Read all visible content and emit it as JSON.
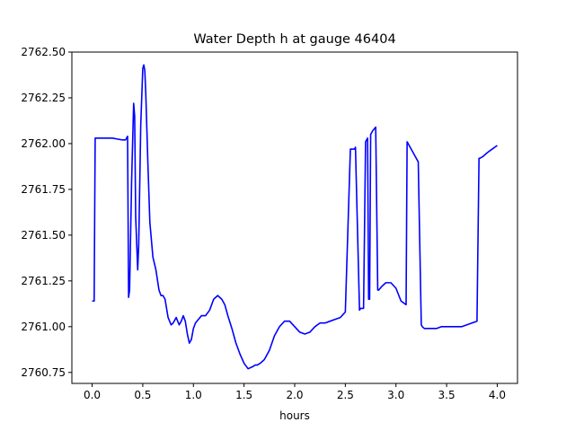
{
  "chart_data": {
    "type": "line",
    "title": "Water Depth h at gauge 46404",
    "xlabel": "hours",
    "ylabel": "",
    "xlim": [
      -0.2,
      4.2
    ],
    "ylim": [
      2760.69,
      2762.5
    ],
    "xticks": [
      0.0,
      0.5,
      1.0,
      1.5,
      2.0,
      2.5,
      3.0,
      3.5,
      4.0
    ],
    "xtick_labels": [
      "0.0",
      "0.5",
      "1.0",
      "1.5",
      "2.0",
      "2.5",
      "3.0",
      "3.5",
      "4.0"
    ],
    "yticks": [
      2760.75,
      2761.0,
      2761.25,
      2761.5,
      2761.75,
      2762.0,
      2762.25,
      2762.5
    ],
    "ytick_labels": [
      "2760.75",
      "2761.00",
      "2761.25",
      "2761.50",
      "2761.75",
      "2762.00",
      "2762.25",
      "2762.50"
    ],
    "grid": false,
    "series": [
      {
        "color": "#0000ff",
        "x": [
          0.0,
          0.02,
          0.03,
          0.1,
          0.2,
          0.3,
          0.33,
          0.35,
          0.36,
          0.37,
          0.39,
          0.41,
          0.42,
          0.43,
          0.45,
          0.46,
          0.48,
          0.5,
          0.51,
          0.52,
          0.53,
          0.55,
          0.57,
          0.6,
          0.63,
          0.66,
          0.68,
          0.7,
          0.72,
          0.75,
          0.78,
          0.8,
          0.83,
          0.86,
          0.88,
          0.9,
          0.92,
          0.94,
          0.96,
          0.98,
          1.0,
          1.02,
          1.05,
          1.08,
          1.12,
          1.16,
          1.2,
          1.24,
          1.28,
          1.31,
          1.34,
          1.38,
          1.42,
          1.46,
          1.5,
          1.54,
          1.58,
          1.61,
          1.63,
          1.66,
          1.7,
          1.75,
          1.8,
          1.85,
          1.9,
          1.95,
          2.0,
          2.05,
          2.1,
          2.15,
          2.2,
          2.25,
          2.3,
          2.35,
          2.4,
          2.45,
          2.5,
          2.55,
          2.59,
          2.6,
          2.64,
          2.65,
          2.68,
          2.7,
          2.72,
          2.73,
          2.74,
          2.75,
          2.76,
          2.77,
          2.8,
          2.82,
          2.83,
          2.86,
          2.9,
          2.95,
          3.0,
          3.05,
          3.1,
          3.11,
          3.14,
          3.18,
          3.22,
          3.25,
          3.26,
          3.28,
          3.3,
          3.35,
          3.4,
          3.45,
          3.5,
          3.55,
          3.6,
          3.65,
          3.7,
          3.75,
          3.8,
          3.82,
          3.83,
          3.86,
          3.9,
          3.95,
          4.0
        ],
        "y": [
          2761.14,
          2761.14,
          2762.03,
          2762.03,
          2762.03,
          2762.02,
          2762.02,
          2762.04,
          2761.16,
          2761.2,
          2761.8,
          2762.22,
          2762.15,
          2761.6,
          2761.31,
          2761.45,
          2762.1,
          2762.41,
          2762.43,
          2762.4,
          2762.27,
          2761.9,
          2761.57,
          2761.38,
          2761.31,
          2761.2,
          2761.17,
          2761.17,
          2761.15,
          2761.05,
          2761.01,
          2761.02,
          2761.05,
          2761.01,
          2761.03,
          2761.06,
          2761.03,
          2760.96,
          2760.91,
          2760.93,
          2760.99,
          2761.02,
          2761.04,
          2761.06,
          2761.06,
          2761.09,
          2761.15,
          2761.17,
          2761.15,
          2761.12,
          2761.06,
          2760.99,
          2760.91,
          2760.85,
          2760.8,
          2760.77,
          2760.78,
          2760.79,
          2760.79,
          2760.8,
          2760.82,
          2760.87,
          2760.95,
          2761.0,
          2761.03,
          2761.03,
          2761.0,
          2760.97,
          2760.96,
          2760.97,
          2761.0,
          2761.02,
          2761.02,
          2761.03,
          2761.04,
          2761.05,
          2761.08,
          2761.97,
          2761.97,
          2761.98,
          2761.09,
          2761.1,
          2761.1,
          2762.01,
          2762.03,
          2761.15,
          2761.15,
          2762.05,
          2762.06,
          2762.07,
          2762.09,
          2761.2,
          2761.2,
          2761.22,
          2761.24,
          2761.24,
          2761.21,
          2761.14,
          2761.12,
          2762.01,
          2761.98,
          2761.94,
          2761.9,
          2761.01,
          2761.0,
          2760.99,
          2760.99,
          2760.99,
          2760.99,
          2761.0,
          2761.0,
          2761.0,
          2761.0,
          2761.0,
          2761.01,
          2761.02,
          2761.03,
          2761.92,
          2761.92,
          2761.93,
          2761.95,
          2761.97,
          2761.99
        ]
      }
    ]
  }
}
